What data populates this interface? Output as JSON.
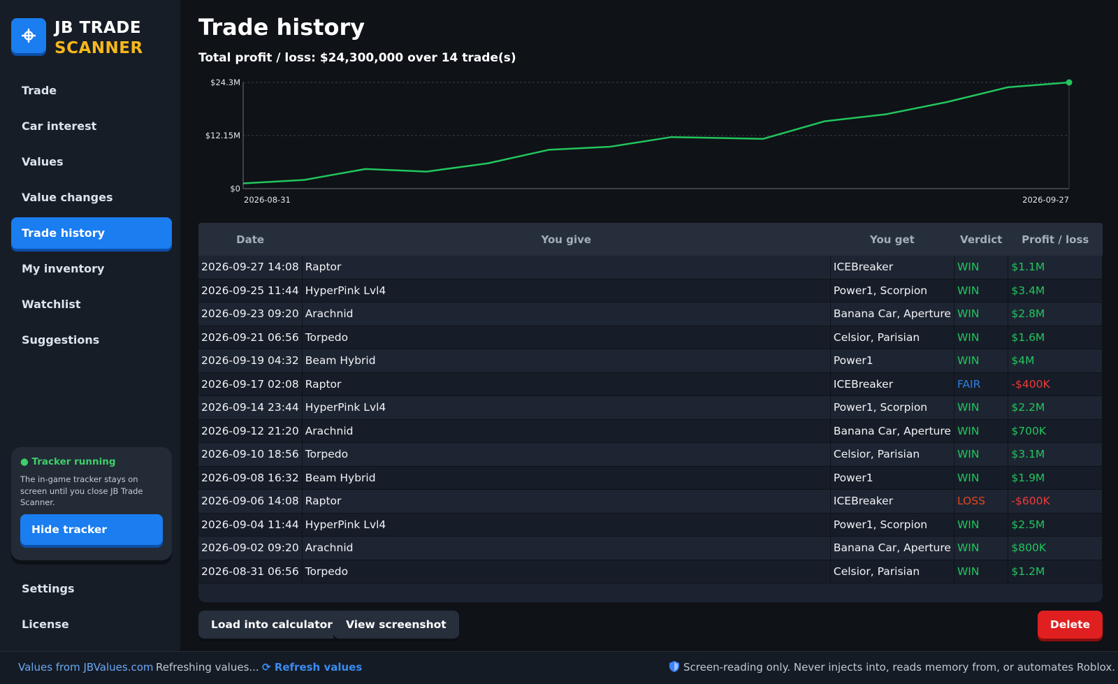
{
  "app": {
    "logo_icon": "crosshair-icon",
    "title_line1": "JB TRADE",
    "title_line2": "SCANNER",
    "brand_color": "#1a7df0",
    "accent_color": "#f5b71b"
  },
  "sidebar": {
    "items": [
      {
        "label": "Trade"
      },
      {
        "label": "Car interest"
      },
      {
        "label": "Values"
      },
      {
        "label": "Value changes"
      },
      {
        "label": "Trade history",
        "active": true
      },
      {
        "label": "My inventory"
      },
      {
        "label": "Watchlist"
      },
      {
        "label": "Suggestions"
      }
    ],
    "bottom_items": [
      {
        "label": "Settings"
      },
      {
        "label": "License"
      }
    ],
    "tracker": {
      "status": "● Tracker running",
      "description": "The in-game tracker stays on screen until you close JB Trade Scanner.",
      "button_label": "Hide tracker"
    }
  },
  "main": {
    "title": "Trade history",
    "summary": "Total profit / loss: $24,300,000 over 14 trade(s)"
  },
  "chart_data": {
    "type": "line",
    "title": "",
    "xlabel": "",
    "ylabel": "",
    "x": [
      "2026-08-31",
      "2026-09-02",
      "2026-09-04",
      "2026-09-06",
      "2026-09-08",
      "2026-09-10",
      "2026-09-12",
      "2026-09-14",
      "2026-09-17",
      "2026-09-19",
      "2026-09-21",
      "2026-09-23",
      "2026-09-25",
      "2026-09-27"
    ],
    "series": [
      {
        "values": [
          1200000,
          2000000,
          4500000,
          3900000,
          5800000,
          8900000,
          9600000,
          11800000,
          11400000,
          15400000,
          17000000,
          19800000,
          23200000,
          24300000
        ],
        "color": "#22c55e"
      }
    ],
    "ylim": [
      0,
      24300000
    ],
    "ytick_labels": [
      "$0",
      "$12.15M",
      "$24.3M"
    ],
    "xtick_labels": [
      "2026-08-31",
      "2026-09-27"
    ],
    "grid": true
  },
  "table": {
    "headers": [
      "Date",
      "You give",
      "You get",
      "Verdict",
      "Profit / loss"
    ],
    "rows": [
      {
        "date": "2026-09-27 14:08",
        "give": "Raptor",
        "get": "ICEBreaker",
        "verdict": "WIN",
        "pl": "$1.1M"
      },
      {
        "date": "2026-09-25 11:44",
        "give": "HyperPink Lvl4",
        "get": "Power1, Scorpion",
        "verdict": "WIN",
        "pl": "$3.4M"
      },
      {
        "date": "2026-09-23 09:20",
        "give": "Arachnid",
        "get": "Banana Car, Aperture",
        "verdict": "WIN",
        "pl": "$2.8M"
      },
      {
        "date": "2026-09-21 06:56",
        "give": "Torpedo",
        "get": "Celsior, Parisian",
        "verdict": "WIN",
        "pl": "$1.6M"
      },
      {
        "date": "2026-09-19 04:32",
        "give": "Beam Hybrid",
        "get": "Power1",
        "verdict": "WIN",
        "pl": "$4M"
      },
      {
        "date": "2026-09-17 02:08",
        "give": "Raptor",
        "get": "ICEBreaker",
        "verdict": "FAIR",
        "pl": "-$400K"
      },
      {
        "date": "2026-09-14 23:44",
        "give": "HyperPink Lvl4",
        "get": "Power1, Scorpion",
        "verdict": "WIN",
        "pl": "$2.2M"
      },
      {
        "date": "2026-09-12 21:20",
        "give": "Arachnid",
        "get": "Banana Car, Aperture",
        "verdict": "WIN",
        "pl": "$700K"
      },
      {
        "date": "2026-09-10 18:56",
        "give": "Torpedo",
        "get": "Celsior, Parisian",
        "verdict": "WIN",
        "pl": "$3.1M"
      },
      {
        "date": "2026-09-08 16:32",
        "give": "Beam Hybrid",
        "get": "Power1",
        "verdict": "WIN",
        "pl": "$1.9M"
      },
      {
        "date": "2026-09-06 14:08",
        "give": "Raptor",
        "get": "ICEBreaker",
        "verdict": "LOSS",
        "pl": "-$600K"
      },
      {
        "date": "2026-09-04 11:44",
        "give": "HyperPink Lvl4",
        "get": "Power1, Scorpion",
        "verdict": "WIN",
        "pl": "$2.5M"
      },
      {
        "date": "2026-09-02 09:20",
        "give": "Arachnid",
        "get": "Banana Car, Aperture",
        "verdict": "WIN",
        "pl": "$800K"
      },
      {
        "date": "2026-08-31 06:56",
        "give": "Torpedo",
        "get": "Celsior, Parisian",
        "verdict": "WIN",
        "pl": "$1.2M"
      }
    ],
    "verdict_colors": {
      "WIN": "#22c55e",
      "FAIR": "#2b7fe6",
      "LOSS": "#e0451f"
    },
    "pl_colors": {
      "positive": "#22c55e",
      "negative": "#ef3b3b"
    }
  },
  "actions": {
    "load_label": "Load into calculator",
    "screenshot_label": "View screenshot",
    "delete_label": "Delete"
  },
  "footer": {
    "source": "Values from JBValues.com",
    "refreshing": "Refreshing values...",
    "refresh_icon": "refresh-icon",
    "refresh_label": "Refresh values",
    "shield_icon": "shield-icon",
    "disclaimer": "Screen-reading only. Never injects into, reads memory from, or automates Roblox."
  }
}
